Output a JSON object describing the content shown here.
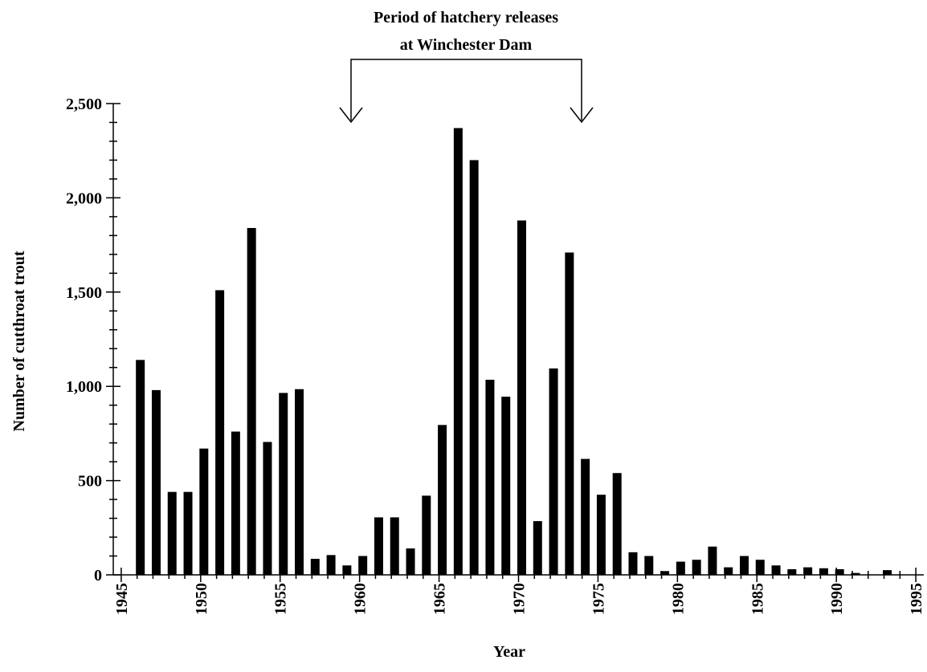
{
  "chart_data": {
    "type": "bar",
    "annotation": [
      "Period of hatchery releases",
      "at Winchester Dam"
    ],
    "xlabel": "Year",
    "ylabel": "Number of cutthroat trout",
    "x": [
      1946,
      1947,
      1948,
      1949,
      1950,
      1951,
      1952,
      1953,
      1954,
      1955,
      1956,
      1957,
      1958,
      1959,
      1960,
      1961,
      1962,
      1963,
      1964,
      1965,
      1966,
      1967,
      1968,
      1969,
      1970,
      1971,
      1972,
      1973,
      1974,
      1975,
      1976,
      1977,
      1978,
      1979,
      1980,
      1981,
      1982,
      1983,
      1984,
      1985,
      1986,
      1987,
      1988,
      1989,
      1990,
      1991,
      1993
    ],
    "values": [
      1140,
      980,
      440,
      440,
      670,
      1510,
      760,
      1840,
      705,
      965,
      985,
      85,
      105,
      50,
      100,
      305,
      305,
      140,
      420,
      795,
      2370,
      2200,
      1035,
      945,
      1880,
      285,
      1095,
      1710,
      615,
      425,
      540,
      120,
      100,
      20,
      70,
      80,
      150,
      40,
      100,
      80,
      50,
      30,
      40,
      35,
      30,
      10,
      25
    ],
    "color": "#000000",
    "xlim": [
      1944.5,
      1995.5
    ],
    "xticks": [
      1945,
      1950,
      1955,
      1960,
      1965,
      1970,
      1975,
      1980,
      1985,
      1990,
      1995
    ],
    "xminorticks": [
      1946,
      1947,
      1948,
      1949,
      1951,
      1952,
      1953,
      1954,
      1956,
      1957,
      1958,
      1959,
      1961,
      1962,
      1963,
      1964,
      1966,
      1967,
      1968,
      1969,
      1971,
      1972,
      1973,
      1974,
      1976,
      1977,
      1978,
      1979,
      1981,
      1982,
      1983,
      1984,
      1986,
      1987,
      1988,
      1989,
      1991,
      1992,
      1993,
      1994
    ],
    "ylim": [
      0,
      2500
    ],
    "yticks": [
      0,
      500,
      {
        "value": 1000,
        "label": "1,000"
      },
      {
        "value": 1500,
        "label": "1,500"
      },
      {
        "value": 2000,
        "label": "2,000"
      },
      {
        "value": 2500,
        "label": "2,500"
      }
    ],
    "yminorticks": [
      100,
      200,
      300,
      400,
      600,
      700,
      800,
      900,
      1100,
      1200,
      1300,
      1400,
      1600,
      1700,
      1800,
      1900,
      2100,
      2200,
      2300,
      2400
    ]
  }
}
